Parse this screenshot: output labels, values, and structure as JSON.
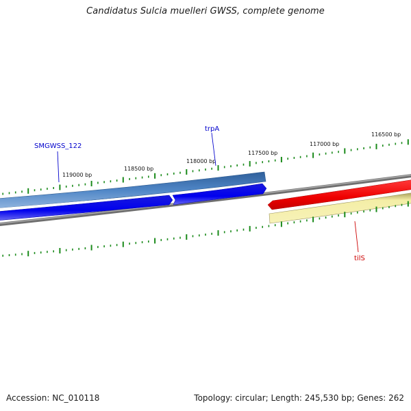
{
  "title": "Candidatus Sulcia muelleri GWSS, complete genome",
  "footer": {
    "accession": "Accession: NC_010118",
    "topology": "Topology: circular; Length: 245,530 bp; Genes: 262"
  },
  "ruler": {
    "labels": [
      "119000 bp",
      "118500 bp",
      "118000 bp",
      "117500 bp",
      "117000 bp",
      "116500 bp"
    ]
  },
  "features": [
    {
      "name": "SMGWSS_122",
      "color": "#0000cc",
      "track": "outer-forward",
      "fill": "#4a7fbf"
    },
    {
      "name": "trpA",
      "color": "#0000cc",
      "track": "outer-forward",
      "fill": "#4a7fbf"
    },
    {
      "name": "",
      "color": "#0000ee",
      "track": "inner-forward",
      "fill": "#0000ee"
    },
    {
      "name": "tilS",
      "color": "#cc0000",
      "track": "reverse",
      "fill": "#ee0000"
    },
    {
      "name": "",
      "color": "#e8e08a",
      "track": "reverse-secondary",
      "fill": "#f1eba0"
    }
  ],
  "colors": {
    "tick": "#1a8a1a",
    "backbone": "#7f7f7f",
    "forward_outer": "#4a7fbf",
    "forward_inner": "#0000ee",
    "reverse": "#ee0000",
    "reverse_secondary": "#f1eba0"
  }
}
